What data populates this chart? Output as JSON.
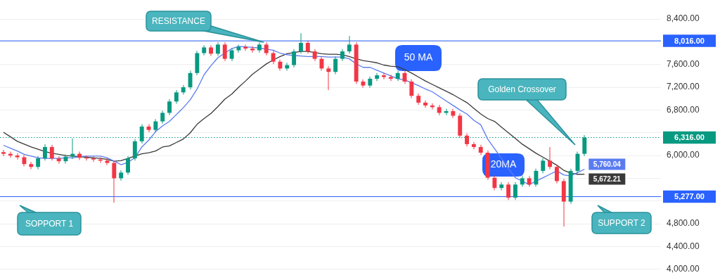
{
  "chart_data": {
    "type": "candlestick",
    "categories": [
      null,
      null,
      null,
      null,
      null,
      null,
      null,
      null,
      null,
      null,
      null,
      null,
      null,
      null,
      null,
      null,
      null,
      null,
      null,
      null,
      null,
      null,
      null,
      null,
      null,
      null,
      null,
      null,
      null,
      null,
      null,
      null,
      null,
      null,
      null,
      null,
      null,
      null,
      null,
      null,
      null,
      null,
      null,
      null,
      null,
      null,
      null,
      null,
      null,
      null,
      null,
      null,
      null,
      null,
      null,
      null,
      null,
      null,
      null,
      null,
      null,
      null,
      null,
      null,
      null,
      null,
      null,
      null,
      null,
      null,
      null,
      null,
      null,
      null,
      null,
      null,
      null,
      null,
      null,
      null,
      null,
      null,
      null,
      null,
      null
    ],
    "ohlc": [
      [
        6060,
        6100,
        5990,
        6030
      ],
      [
        6030,
        6070,
        5960,
        6000
      ],
      [
        6000,
        6040,
        5930,
        5970
      ],
      [
        5970,
        6010,
        5810,
        5850
      ],
      [
        5850,
        5890,
        5760,
        5800
      ],
      [
        5800,
        5990,
        5760,
        5950
      ],
      [
        5950,
        6200,
        5910,
        6150
      ],
      [
        6150,
        6190,
        5910,
        5950
      ],
      [
        5950,
        5990,
        5860,
        5900
      ],
      [
        5900,
        6020,
        5860,
        5980
      ],
      [
        5980,
        6300,
        5940,
        6030
      ],
      [
        6030,
        6070,
        5920,
        5960
      ],
      [
        5960,
        6000,
        5910,
        5950
      ],
      [
        5950,
        5990,
        5890,
        5930
      ],
      [
        5930,
        5970,
        5870,
        5910
      ],
      [
        5910,
        5950,
        5830,
        5870
      ],
      [
        5870,
        5910,
        5170,
        5600
      ],
      [
        5600,
        5740,
        5560,
        5700
      ],
      [
        5700,
        5990,
        5660,
        5950
      ],
      [
        5950,
        6290,
        5910,
        6250
      ],
      [
        6250,
        6550,
        6210,
        6510
      ],
      [
        6510,
        6550,
        6410,
        6450
      ],
      [
        6450,
        6640,
        6410,
        6600
      ],
      [
        6600,
        6790,
        6560,
        6750
      ],
      [
        6750,
        6990,
        6710,
        6950
      ],
      [
        6950,
        7150,
        6910,
        7110
      ],
      [
        7110,
        7240,
        7070,
        7200
      ],
      [
        7200,
        7490,
        7160,
        7450
      ],
      [
        7450,
        7840,
        7410,
        7800
      ],
      [
        7800,
        7940,
        7760,
        7900
      ],
      [
        7900,
        7940,
        7750,
        7790
      ],
      [
        7790,
        7990,
        7750,
        7950
      ],
      [
        7950,
        7990,
        7660,
        7700
      ],
      [
        7700,
        7890,
        7660,
        7850
      ],
      [
        7850,
        7950,
        7810,
        7910
      ],
      [
        7910,
        7950,
        7840,
        7880
      ],
      [
        7880,
        7920,
        7810,
        7850
      ],
      [
        7850,
        7990,
        7810,
        7950
      ],
      [
        7950,
        7990,
        7760,
        7800
      ],
      [
        7800,
        7840,
        7610,
        7650
      ],
      [
        7650,
        7690,
        7490,
        7530
      ],
      [
        7530,
        7630,
        7490,
        7590
      ],
      [
        7590,
        7870,
        7550,
        7830
      ],
      [
        7830,
        8150,
        7790,
        7980
      ],
      [
        7980,
        8020,
        7790,
        7830
      ],
      [
        7830,
        7870,
        7660,
        7700
      ],
      [
        7700,
        7740,
        7490,
        7530
      ],
      [
        7530,
        7570,
        7150,
        7470
      ],
      [
        7470,
        7740,
        7430,
        7700
      ],
      [
        7700,
        7870,
        7660,
        7830
      ],
      [
        7830,
        8100,
        7790,
        7950
      ],
      [
        7950,
        7990,
        7260,
        7300
      ],
      [
        7300,
        7340,
        7190,
        7230
      ],
      [
        7230,
        7390,
        7190,
        7350
      ],
      [
        7350,
        7450,
        7310,
        7410
      ],
      [
        7410,
        7450,
        7340,
        7380
      ],
      [
        7380,
        7420,
        7310,
        7350
      ],
      [
        7350,
        7490,
        7310,
        7450
      ],
      [
        7450,
        7490,
        7260,
        7300
      ],
      [
        7300,
        7340,
        7010,
        7050
      ],
      [
        7050,
        7090,
        6890,
        6930
      ],
      [
        6930,
        6970,
        6840,
        6880
      ],
      [
        6880,
        6920,
        6810,
        6850
      ],
      [
        6850,
        6890,
        6710,
        6750
      ],
      [
        6750,
        6820,
        6710,
        6780
      ],
      [
        6780,
        6820,
        6660,
        6700
      ],
      [
        6700,
        6740,
        6310,
        6350
      ],
      [
        6350,
        6390,
        6160,
        6200
      ],
      [
        6200,
        6240,
        6110,
        6150
      ],
      [
        6150,
        6190,
        6010,
        6050
      ],
      [
        6050,
        6090,
        5570,
        5610
      ],
      [
        5610,
        5650,
        5390,
        5430
      ],
      [
        5430,
        5530,
        5390,
        5490
      ],
      [
        5490,
        5530,
        5220,
        5260
      ],
      [
        5260,
        5530,
        5220,
        5490
      ],
      [
        5490,
        5640,
        5450,
        5600
      ],
      [
        5600,
        5640,
        5450,
        5490
      ],
      [
        5490,
        5770,
        5450,
        5730
      ],
      [
        5730,
        5950,
        5690,
        5910
      ],
      [
        5910,
        6150,
        5760,
        5800
      ],
      [
        5800,
        5840,
        5510,
        5550
      ],
      [
        5550,
        5590,
        4750,
        5190
      ],
      [
        5190,
        5770,
        5150,
        5730
      ],
      [
        5730,
        6070,
        5690,
        6030
      ],
      [
        6030,
        6360,
        5990,
        6316
      ]
    ],
    "colors": [
      "#f23645",
      "#f23645",
      "#f23645",
      "#f23645",
      "#f23645",
      "#089981",
      "#089981",
      "#f23645",
      "#f23645",
      "#089981",
      "#089981",
      "#f23645",
      "#f23645",
      "#f23645",
      "#f23645",
      "#f23645",
      "#f23645",
      "#089981",
      "#089981",
      "#089981",
      "#089981",
      "#f23645",
      "#089981",
      "#089981",
      "#089981",
      "#089981",
      "#089981",
      "#089981",
      "#089981",
      "#089981",
      "#f23645",
      "#089981",
      "#f23645",
      "#089981",
      "#089981",
      "#f23645",
      "#f23645",
      "#089981",
      "#f23645",
      "#f23645",
      "#f23645",
      "#089981",
      "#089981",
      "#089981",
      "#f23645",
      "#f23645",
      "#f23645",
      "#f23645",
      "#089981",
      "#089981",
      "#089981",
      "#f23645",
      "#f23645",
      "#089981",
      "#089981",
      "#f23645",
      "#f23645",
      "#089981",
      "#f23645",
      "#f23645",
      "#f23645",
      "#f23645",
      "#f23645",
      "#f23645",
      "#089981",
      "#f23645",
      "#f23645",
      "#f23645",
      "#f23645",
      "#f23645",
      "#f23645",
      "#f23645",
      "#089981",
      "#f23645",
      "#089981",
      "#089981",
      "#f23645",
      "#089981",
      "#089981",
      "#f23645",
      "#f23645",
      "#f23645",
      "#089981",
      "#089981",
      "#089981"
    ],
    "series": [
      {
        "name": "20MA",
        "type": "line",
        "color": "#5b7cf0",
        "values": [
          6180,
          6130,
          6080,
          6020,
          5990,
          5960,
          5950,
          5950,
          5950,
          5960,
          5960,
          5980,
          5990,
          5990,
          5990,
          5960,
          5900,
          5840,
          5880,
          5960,
          6150,
          6270,
          6420,
          6520,
          6600,
          6720,
          6840,
          6980,
          7170,
          7420,
          7580,
          7720,
          7800,
          7880,
          7920,
          7910,
          7900,
          7890,
          7870,
          7850,
          7800,
          7770,
          7760,
          7750,
          7740,
          7740,
          7740,
          7730,
          7730,
          7730,
          7700,
          7610,
          7550,
          7550,
          7500,
          7450,
          7400,
          7350,
          7330,
          7280,
          7230,
          7170,
          7120,
          7040,
          6960,
          6880,
          6800,
          6730,
          6620,
          6540,
          6290,
          6120,
          5950,
          5770,
          5610,
          5550,
          5490,
          5550,
          5610,
          5670,
          5730,
          5660,
          5640,
          5700,
          5760.04
        ],
        "value_labels": [
          null,
          null,
          null,
          null,
          null,
          null,
          null,
          null,
          null,
          null,
          null,
          null,
          null,
          null,
          null,
          null,
          null,
          null,
          null,
          null,
          null,
          null,
          null,
          null,
          null,
          null,
          null,
          null,
          null,
          null,
          null,
          null,
          null,
          null,
          null,
          null,
          null,
          null,
          null,
          null,
          null,
          null,
          null,
          null,
          null,
          null,
          null,
          null,
          null,
          null,
          null,
          null,
          null,
          null,
          null,
          null,
          null,
          null,
          null,
          null,
          null,
          null,
          null,
          null,
          null,
          null,
          null,
          null,
          null,
          null,
          null,
          null,
          null,
          null,
          null,
          null,
          null,
          null,
          null,
          null,
          null,
          null,
          null,
          null,
          "5,760.04"
        ]
      },
      {
        "name": "50 MA",
        "type": "line",
        "color": "#3a3a3a",
        "values": [
          6410,
          6330,
          6250,
          6200,
          6150,
          6110,
          6070,
          6040,
          6020,
          6000,
          5990,
          5980,
          5970,
          5960,
          5950,
          5930,
          5900,
          5910,
          5950,
          5990,
          6030,
          6050,
          6080,
          6150,
          6170,
          6230,
          6290,
          6400,
          6550,
          6650,
          6740,
          6860,
          6990,
          7080,
          7200,
          7310,
          7430,
          7520,
          7610,
          7680,
          7740,
          7790,
          7810,
          7830,
          7830,
          7810,
          7790,
          7780,
          7780,
          7770,
          7740,
          7700,
          7670,
          7650,
          7630,
          7590,
          7570,
          7560,
          7510,
          7450,
          7380,
          7310,
          7250,
          7190,
          7130,
          7070,
          7000,
          6930,
          6830,
          6730,
          6650,
          6600,
          6500,
          6400,
          6300,
          6200,
          6120,
          6040,
          5970,
          5900,
          5830,
          5740,
          5690,
          5670,
          5672.21
        ],
        "value_labels": [
          null,
          null,
          null,
          null,
          null,
          null,
          null,
          null,
          null,
          null,
          null,
          null,
          null,
          null,
          null,
          null,
          null,
          null,
          null,
          null,
          null,
          null,
          null,
          null,
          null,
          null,
          null,
          null,
          null,
          null,
          null,
          null,
          null,
          null,
          null,
          null,
          null,
          null,
          null,
          null,
          null,
          null,
          null,
          null,
          null,
          null,
          null,
          null,
          null,
          null,
          null,
          null,
          null,
          null,
          null,
          null,
          null,
          null,
          null,
          null,
          null,
          null,
          null,
          null,
          null,
          null,
          null,
          null,
          null,
          null,
          null,
          null,
          null,
          null,
          null,
          null,
          null,
          null,
          null,
          null,
          null,
          null,
          null,
          null,
          "5,672.21"
        ]
      }
    ],
    "ylim": [
      4000,
      8400
    ],
    "yticks": [
      {
        "value": 4000,
        "label": "4,000.00"
      },
      {
        "value": 4400,
        "label": "4,400.00"
      },
      {
        "value": 4800,
        "label": "4,800.00"
      },
      {
        "value": 5200,
        "label": null
      },
      {
        "value": 5600,
        "label": null
      },
      {
        "value": 6000,
        "label": "6,000.00"
      },
      {
        "value": 6400,
        "label": null
      },
      {
        "value": 6800,
        "label": "6,800.00"
      },
      {
        "value": 7200,
        "label": "7,200.00"
      },
      {
        "value": 7600,
        "label": "7,600.00"
      },
      {
        "value": 8000,
        "label": null
      },
      {
        "value": 8400,
        "label": "8,400.00"
      }
    ],
    "ref_lines": [
      {
        "axis": "y",
        "value": 8016,
        "label": "8,016.00",
        "color": "#2962ff"
      },
      {
        "axis": "y",
        "value": 5277,
        "label": "5,277.00",
        "color": "#2962ff"
      },
      {
        "axis": "y",
        "value": 6316,
        "label": "6,316.00",
        "color": "#089981",
        "line_style": "dotted"
      }
    ],
    "annotations": [
      "RESISTANCE",
      "SOPPORT 1",
      "Golden Crossover",
      "SUPPORT 2"
    ],
    "grid": "y",
    "legend": false
  }
}
